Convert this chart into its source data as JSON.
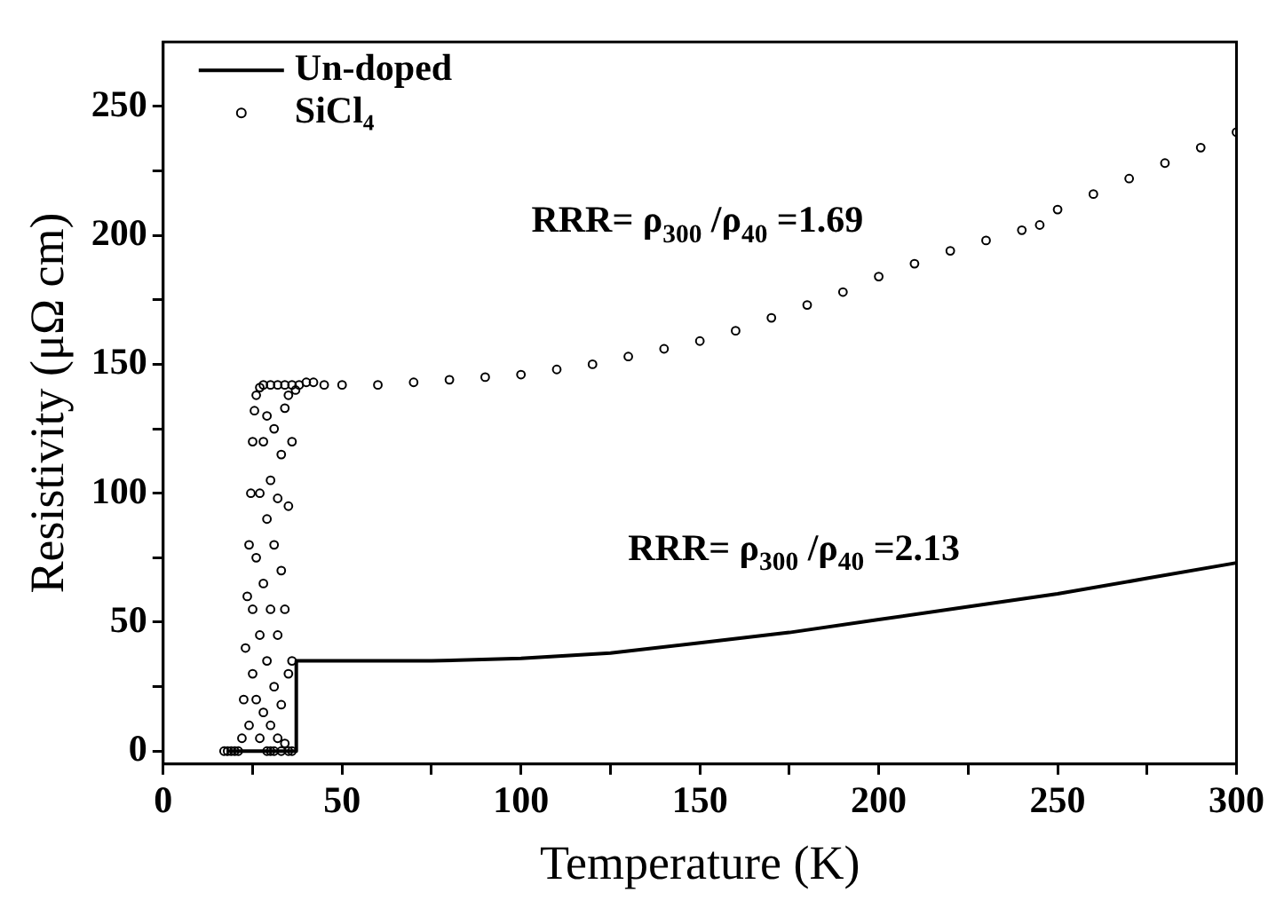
{
  "chart_data": {
    "type": "line",
    "xlabel": "Temperature (K)",
    "ylabel": "Resistivity (μΩ cm)",
    "xlim": [
      0,
      300
    ],
    "ylim": [
      -5,
      275
    ],
    "xticks": [
      0,
      {
        "value": 25,
        "label": null
      },
      50,
      {
        "value": 75,
        "label": null
      },
      100,
      {
        "value": 125,
        "label": null
      },
      150,
      {
        "value": 175,
        "label": null
      },
      200,
      {
        "value": 225,
        "label": null
      },
      250,
      {
        "value": 275,
        "label": null
      },
      300
    ],
    "yticks": [
      0,
      {
        "value": 25,
        "label": null
      },
      50,
      {
        "value": 75,
        "label": null
      },
      100,
      {
        "value": 125,
        "label": null
      },
      150,
      {
        "value": 175,
        "label": null
      },
      200,
      {
        "value": 225,
        "label": null
      },
      250
    ],
    "grid": false,
    "legend": "top left",
    "series": [
      {
        "name": "Un-doped",
        "type": "line",
        "color": "#000000",
        "marker": "none",
        "line_style": "solid",
        "x": [
          18,
          37,
          37.2,
          50,
          75,
          100,
          125,
          150,
          175,
          200,
          225,
          250,
          275,
          300
        ],
        "values": [
          0,
          0,
          35,
          35,
          35,
          36,
          38,
          42,
          46,
          51,
          56,
          61,
          67,
          73
        ]
      },
      {
        "name": "SiCl₄",
        "type": "scatter",
        "color": "#000000",
        "marker": "circle",
        "x": [
          17,
          18,
          19,
          20,
          21,
          22,
          22.5,
          23,
          23.5,
          24,
          24.5,
          25,
          25.5,
          26,
          27,
          28,
          24,
          25,
          25,
          26,
          26,
          27,
          27,
          27,
          28,
          28,
          28,
          29,
          29,
          29,
          29,
          30,
          30,
          30,
          31,
          31,
          31,
          31,
          32,
          32,
          32,
          33,
          33,
          33,
          33,
          34,
          34,
          34,
          35,
          35,
          35,
          36,
          36,
          37,
          30,
          35,
          36,
          30,
          32,
          34,
          36,
          38,
          40,
          42,
          45,
          50,
          60,
          70,
          80,
          90,
          100,
          110,
          120,
          130,
          140,
          150,
          160,
          170,
          180,
          190,
          200,
          210,
          220,
          230,
          240,
          245,
          250,
          260,
          270,
          280,
          290,
          300
        ],
        "values": [
          0,
          0,
          0,
          0,
          0,
          5,
          20,
          40,
          60,
          80,
          100,
          120,
          132,
          138,
          141,
          142,
          10,
          30,
          55,
          20,
          75,
          5,
          45,
          100,
          15,
          65,
          120,
          0,
          35,
          90,
          130,
          10,
          55,
          105,
          0,
          25,
          80,
          125,
          5,
          45,
          98,
          0,
          18,
          70,
          115,
          3,
          55,
          133,
          30,
          95,
          138,
          35,
          120,
          140,
          0,
          0,
          0,
          142,
          142,
          142,
          142,
          142,
          143,
          143,
          142,
          142,
          142,
          143,
          144,
          145,
          146,
          148,
          150,
          153,
          156,
          159,
          163,
          168,
          173,
          178,
          184,
          189,
          194,
          198,
          202,
          204,
          210,
          216,
          222,
          228,
          234,
          240
        ]
      }
    ],
    "annotations": [
      "RRR= ρ$_{300}$ /ρ$_{40}$ =1.69",
      "RRR= ρ$_{300}$ /ρ$_{40}$ =2.13"
    ]
  }
}
